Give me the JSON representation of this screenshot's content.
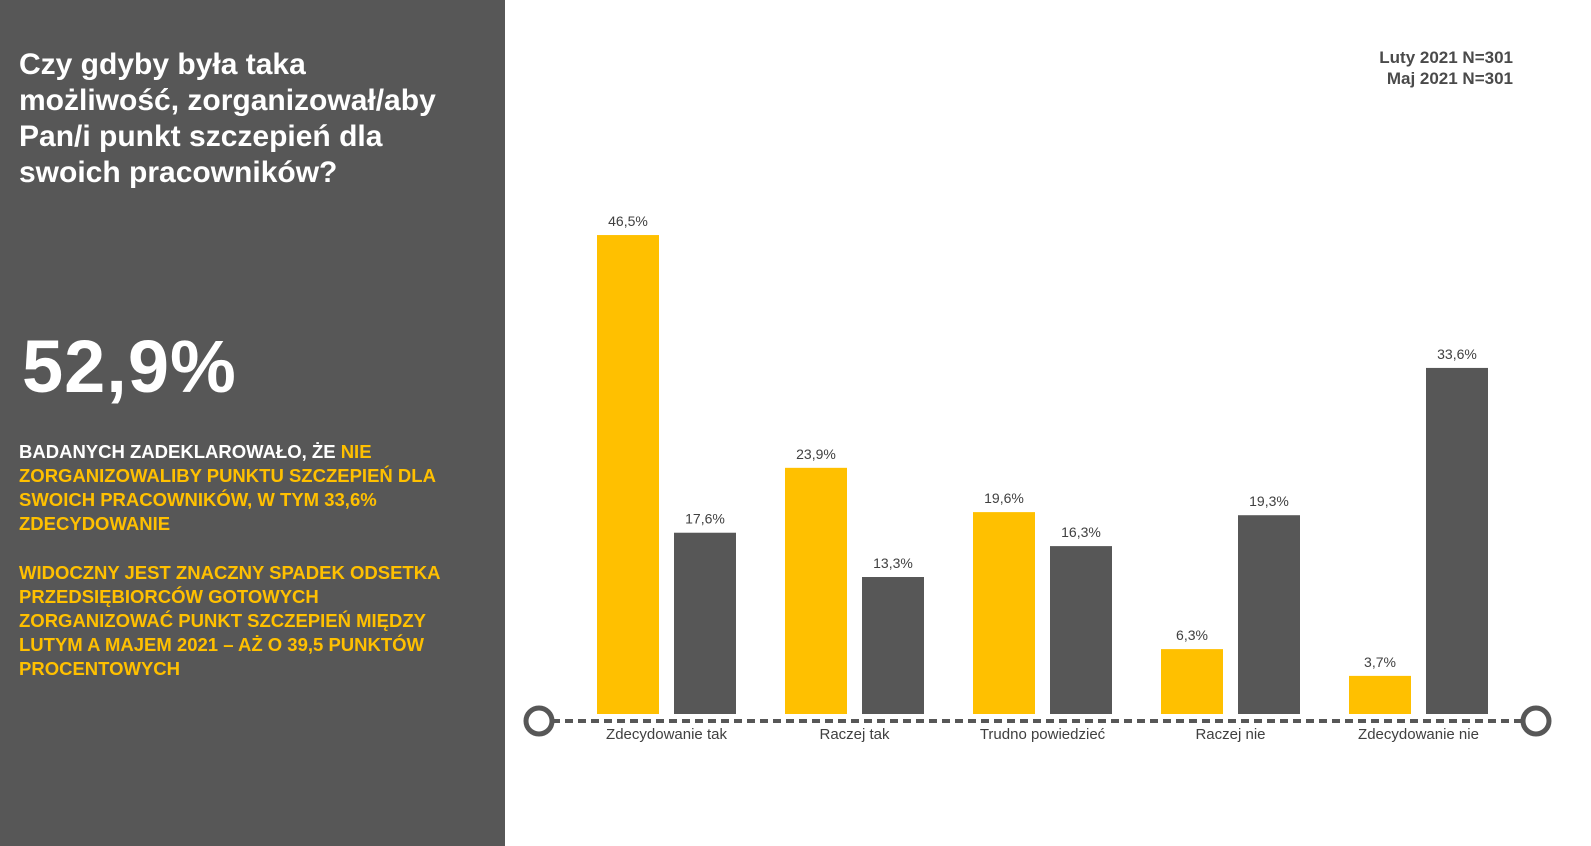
{
  "question": "Czy gdyby była taka możliwość, zorganizował/aby Pan/i punkt szczepień dla swoich pracowników?",
  "headline_percent": "52,9%",
  "note1": {
    "prefix": "BADANYCH ZADEKLAROWAŁO, ŻE ",
    "highlight": "NIE ZORGANIZOWALIBY PUNKTU SZCZEPIEŃ DLA SWOICH PRACOWNIKÓW, W TYM 33,6% ZDECYDOWANIE"
  },
  "note2": "WIDOCZNY JEST ZNACZNY SPADEK ODSETKA PRZEDSIĘBIORCÓW GOTOWYCH ZORGANIZOWAĆ PUNKT SZCZEPIEŃ MIĘDZY LUTYM A MAJEM 2021 – AŻ O 39,5 PUNKTÓW PROCENTOWYCH",
  "legend": [
    "Luty 2021 N=301",
    "Maj 2021 N=301"
  ],
  "colors": {
    "panel": "#575757",
    "series1": "#ffc000",
    "series2": "#575757",
    "highlight": "#ffc000"
  },
  "chart_data": {
    "type": "bar",
    "categories": [
      "Zdecydowanie tak",
      "Raczej tak",
      "Trudno powiedzieć",
      "Raczej nie",
      "Zdecydowanie nie"
    ],
    "series": [
      {
        "name": "Luty 2021 N=301",
        "values": [
          46.5,
          23.9,
          19.6,
          6.3,
          3.7
        ],
        "labels": [
          "46,5%",
          "23,9%",
          "19,6%",
          "6,3%",
          "3,7%"
        ],
        "color": "#ffc000"
      },
      {
        "name": "Maj 2021 N=301",
        "values": [
          17.6,
          13.3,
          16.3,
          19.3,
          33.6
        ],
        "labels": [
          "17,6%",
          "13,3%",
          "16,3%",
          "19,3%",
          "33,6%"
        ],
        "color": "#575757"
      }
    ],
    "ylim": [
      0,
      50
    ],
    "grid": false,
    "legend_position": "top-right"
  }
}
